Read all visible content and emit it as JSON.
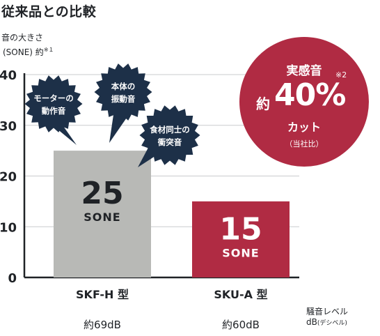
{
  "title": "従来品との比較",
  "axis": {
    "label_line1": "音の大きさ",
    "label_line2": "(SONE) 約",
    "label_note": "※１"
  },
  "callout_main": {
    "line1": "実感音",
    "note": "※2",
    "prefix": "約",
    "percent": "40%",
    "line3": "カット",
    "line4": "（当社比）"
  },
  "bubbles": [
    {
      "line1": "モーターの",
      "line2": "動作音"
    },
    {
      "line1": "本体の",
      "line2": "振動音"
    },
    {
      "line1": "食材同士の",
      "line2": "衝突音"
    }
  ],
  "legend_note": {
    "line1": "騒音レベル",
    "line2": "dB",
    "line2_small": "(デシベル)"
  },
  "colors": {
    "bar1": "#b8b9b6",
    "bar2": "#b02b43",
    "bubble": "#1d3048",
    "grid": "#c9cbcd",
    "text": "#1f2226"
  },
  "chart_data": {
    "type": "bar",
    "categories": [
      "SKF-H 型",
      "SKU-A 型"
    ],
    "values": [
      25,
      15
    ],
    "value_unit_label": "SONE",
    "db_labels": [
      "約69dB",
      "約60dB"
    ],
    "ylim": [
      0,
      40
    ],
    "yticks": [
      0,
      10,
      20,
      30,
      40
    ],
    "grid": true
  }
}
